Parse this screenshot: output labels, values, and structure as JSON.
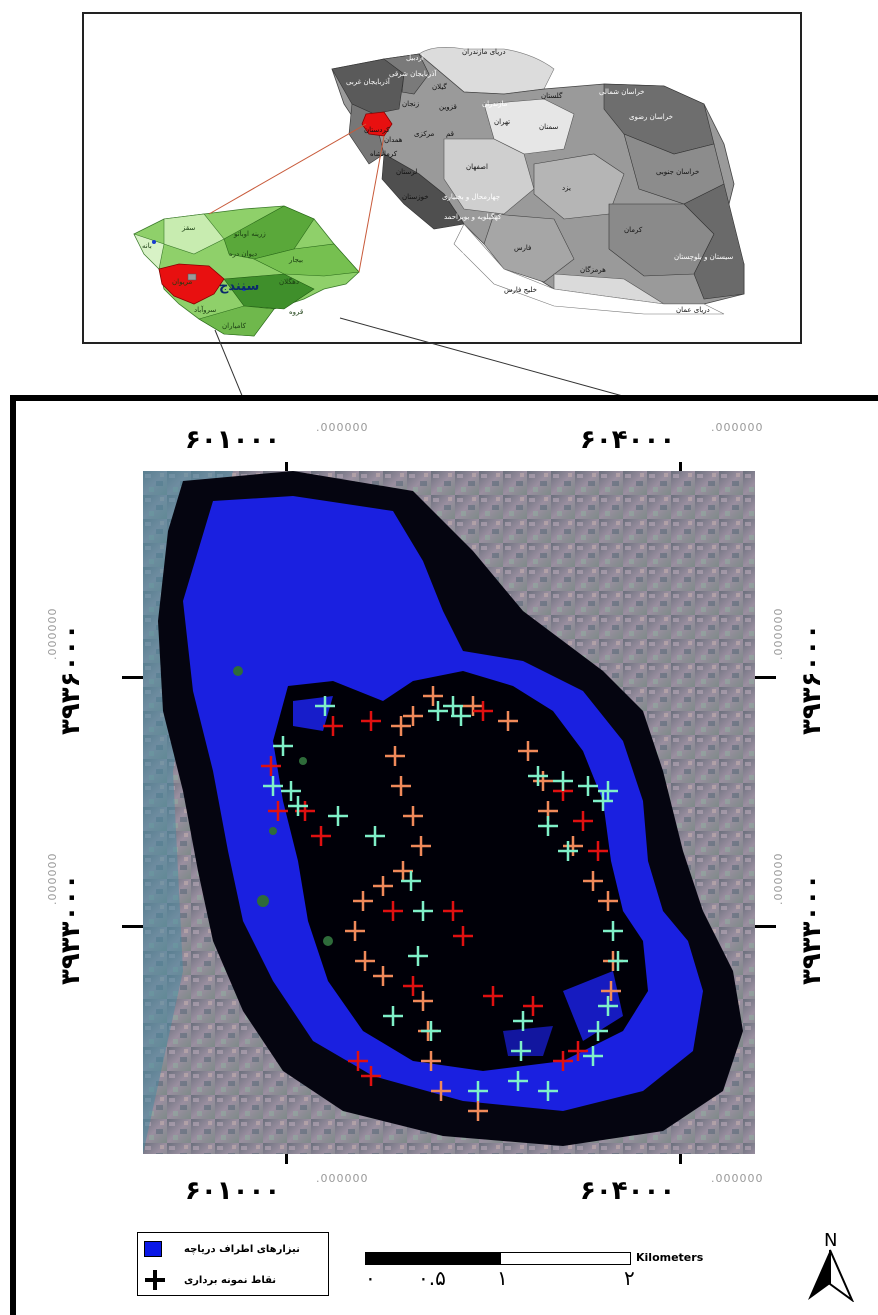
{
  "inset": {
    "provinces": {
      "west_azerbaijan": "آذربایجان غربی",
      "east_azerbaijan": "آذربایجان شرقی",
      "ardabil": "اردبیل",
      "zanjan": "زنجان",
      "gilan": "گیلان",
      "qazvin": "قزوین",
      "mazandaran": "مازندران",
      "golestan": "گلستان",
      "north_khorasan": "خراسان شمالی",
      "razavi_khorasan": "خراسان رضوی",
      "south_khorasan": "خراسان جنوبی",
      "tehran": "تهران",
      "semnan": "سمنان",
      "qom": "قم",
      "markazi": "مرکزی",
      "hamedan": "همدان",
      "kurdistan": "کردستان",
      "kermanshah": "کرمانشاه",
      "lorestan": "لرستان",
      "ilam": "ایلام",
      "khuzestan": "خوزستان",
      "isfahan": "اصفهان",
      "chaharmahal": "چهارمحال و بختیاری",
      "kohgiluyeh": "کهگیلویه و بویراحمد",
      "bushehr": "بوشهر",
      "fars": "فارس",
      "yazd": "یزد",
      "kerman": "کرمان",
      "hormozgan": "هرمزگان",
      "sistan": "سیستان و بلوچستان",
      "caspian": "دریای مازندران",
      "persian_gulf": "خلیج فارس",
      "oman_sea": "دریای عمان"
    },
    "kurdistan_counties": {
      "saqqez": "سقز",
      "baneh": "بانه",
      "divandarreh": "دیوان دره",
      "bijar": "بیجار",
      "zarineh": "زرینه اوباتو",
      "sanandaj": "سنندج",
      "marivan": "مریوان",
      "sarvabad": "سروآباد",
      "kamyaran": "کامیاران",
      "dehgolan": "دهگلان",
      "qorveh": "قروه"
    }
  },
  "main_map": {
    "coords_top": [
      {
        "value": "۶۰۱۰۰۰",
        "suffix": ".000000"
      },
      {
        "value": "۶۰۴۰۰۰",
        "suffix": ".000000"
      }
    ],
    "coords_bottom": [
      {
        "value": "۶۰۱۰۰۰",
        "suffix": ".000000"
      },
      {
        "value": "۶۰۴۰۰۰",
        "suffix": ".000000"
      }
    ],
    "coords_left": [
      {
        "value": "۳۹۳۶۰۰۰",
        "suffix": ".000000"
      },
      {
        "value": "۳۹۳۳۰۰۰",
        "suffix": ".000000"
      }
    ],
    "coords_right": [
      {
        "value": "۳۹۳۶۰۰۰",
        "suffix": ".000000"
      },
      {
        "value": "۳۹۳۳۰۰۰",
        "suffix": ".000000"
      }
    ]
  },
  "legend": {
    "reed_label": "نیزارهای اطراف دریاچه",
    "sample_label": "نقاط نمونه برداری",
    "reed_color": "#0a18e6"
  },
  "scale": {
    "unit": "Kilometers",
    "labels": [
      "۰",
      "۰.۵",
      "۱",
      "۲"
    ]
  },
  "north": {
    "label": "N"
  },
  "colors": {
    "sample_red": "#e01010",
    "sample_cyan": "#7ff0c8",
    "sample_orange": "#f08a5a",
    "highlight": "#e81010"
  }
}
